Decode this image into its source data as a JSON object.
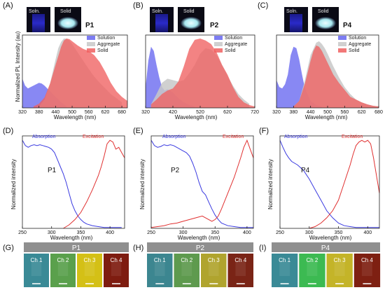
{
  "colors": {
    "solution": "#6666f0",
    "aggregate": "#c8c8c8",
    "solid": "#f06060",
    "absorption": "#3a3ae0",
    "excitation": "#e03030"
  },
  "insets": {
    "soln": "Soln.",
    "solid": "Solid"
  },
  "chart_data": [
    {
      "panel": "(A)",
      "sample": "P1",
      "type": "area",
      "xlabel": "Wavelength (nm)",
      "ylabel": "Normalized PL Intensity (au)",
      "xlim": [
        320,
        700
      ],
      "ylim": [
        0,
        1.05
      ],
      "xticks": [
        "320",
        "380",
        "440",
        "500",
        "560",
        "620",
        "680"
      ],
      "legend": [
        "Solution",
        "Aggregate",
        "Solid"
      ],
      "series": [
        {
          "name": "Solution",
          "color": "#6666f0",
          "x": [
            320,
            330,
            340,
            350,
            360,
            370,
            380,
            390,
            400,
            410,
            420,
            430,
            440,
            450,
            460,
            470,
            480
          ],
          "y": [
            0.42,
            0.32,
            0.28,
            0.3,
            0.32,
            0.34,
            0.36,
            0.35,
            0.32,
            0.28,
            0.24,
            0.2,
            0.16,
            0.12,
            0.08,
            0.05,
            0.02
          ]
        },
        {
          "name": "Aggregate",
          "color": "#c8c8c8",
          "x": [
            380,
            400,
            420,
            440,
            450,
            460,
            470,
            480,
            490,
            500,
            520,
            540,
            560,
            580,
            600,
            620,
            640,
            660,
            680
          ],
          "y": [
            0.02,
            0.12,
            0.35,
            0.7,
            0.86,
            0.95,
            1.0,
            1.0,
            0.97,
            0.92,
            0.8,
            0.68,
            0.56,
            0.45,
            0.36,
            0.28,
            0.2,
            0.14,
            0.08
          ]
        },
        {
          "name": "Solid",
          "color": "#f06060",
          "x": [
            360,
            380,
            400,
            420,
            440,
            460,
            470,
            480,
            490,
            500,
            520,
            540,
            560,
            580,
            600,
            620,
            640,
            660,
            680,
            700
          ],
          "y": [
            0.02,
            0.06,
            0.15,
            0.35,
            0.62,
            0.88,
            0.97,
            1.0,
            0.99,
            0.96,
            0.9,
            0.85,
            0.82,
            0.76,
            0.66,
            0.52,
            0.36,
            0.24,
            0.16,
            0.1
          ]
        }
      ]
    },
    {
      "panel": "(B)",
      "sample": "P2",
      "type": "area",
      "xlabel": "Wavelength (nm)",
      "ylabel": "",
      "xlim": [
        320,
        720
      ],
      "ylim": [
        0,
        1.05
      ],
      "xticks": [
        "320",
        "420",
        "520",
        "620",
        "720"
      ],
      "legend": [
        "Solution",
        "Aggregate",
        "Solid"
      ],
      "series": [
        {
          "name": "Solution",
          "color": "#6666f0",
          "x": [
            320,
            330,
            340,
            350,
            360,
            370,
            380,
            390,
            400,
            420,
            440,
            460,
            480,
            500
          ],
          "y": [
            0.3,
            0.68,
            0.88,
            0.82,
            0.62,
            0.44,
            0.3,
            0.25,
            0.27,
            0.22,
            0.14,
            0.08,
            0.04,
            0.02
          ]
        },
        {
          "name": "Aggregate",
          "color": "#c8c8c8",
          "x": [
            340,
            360,
            380,
            400,
            420,
            440,
            460,
            480,
            500,
            520,
            540,
            560,
            580,
            600,
            620,
            640,
            660,
            680,
            700
          ],
          "y": [
            0.05,
            0.2,
            0.36,
            0.42,
            0.4,
            0.38,
            0.4,
            0.5,
            0.62,
            0.78,
            0.86,
            0.84,
            0.76,
            0.62,
            0.46,
            0.32,
            0.2,
            0.12,
            0.06
          ]
        },
        {
          "name": "Solid",
          "color": "#f06060",
          "x": [
            340,
            360,
            380,
            400,
            420,
            440,
            460,
            480,
            500,
            520,
            540,
            560,
            580,
            600,
            620,
            640,
            660,
            680,
            700,
            720
          ],
          "y": [
            0.05,
            0.12,
            0.2,
            0.25,
            0.28,
            0.38,
            0.6,
            0.85,
            0.98,
            1.0,
            0.97,
            0.92,
            0.8,
            0.62,
            0.48,
            0.3,
            0.16,
            0.08,
            0.04,
            0.02
          ]
        }
      ]
    },
    {
      "panel": "(C)",
      "sample": "P4",
      "type": "area",
      "xlabel": "Wavelength (nm)",
      "ylabel": "",
      "xlim": [
        320,
        680
      ],
      "ylim": [
        0,
        1.05
      ],
      "xticks": [
        "320",
        "380",
        "440",
        "500",
        "560",
        "620",
        "680"
      ],
      "legend": [
        "Solution",
        "Aggregate",
        "Solid"
      ],
      "series": [
        {
          "name": "Solution",
          "color": "#6666f0",
          "x": [
            320,
            330,
            340,
            350,
            360,
            370,
            380,
            390,
            400,
            410,
            420,
            440,
            460,
            480
          ],
          "y": [
            0.4,
            0.3,
            0.28,
            0.34,
            0.48,
            0.76,
            0.88,
            0.86,
            0.7,
            0.48,
            0.28,
            0.1,
            0.04,
            0.02
          ]
        },
        {
          "name": "Aggregate",
          "color": "#c8c8c8",
          "x": [
            380,
            400,
            420,
            440,
            460,
            470,
            480,
            490,
            500,
            520,
            540,
            560,
            580,
            600,
            620,
            640,
            660,
            680
          ],
          "y": [
            0.02,
            0.1,
            0.4,
            0.76,
            0.94,
            0.96,
            0.92,
            0.86,
            0.78,
            0.6,
            0.44,
            0.3,
            0.2,
            0.12,
            0.08,
            0.05,
            0.03,
            0.02
          ]
        },
        {
          "name": "Solid",
          "color": "#f06060",
          "x": [
            380,
            400,
            420,
            440,
            450,
            460,
            470,
            480,
            500,
            520,
            540,
            560,
            580,
            600,
            620,
            640,
            660,
            680
          ],
          "y": [
            0.02,
            0.1,
            0.35,
            0.68,
            0.82,
            0.9,
            0.88,
            0.82,
            0.65,
            0.48,
            0.36,
            0.26,
            0.16,
            0.12,
            0.08,
            0.05,
            0.03,
            0.02
          ]
        }
      ]
    },
    {
      "panel": "(D)",
      "sample": "P1",
      "type": "line",
      "xlabel": "Wavelength (nm)",
      "ylabel": "Normalized intensity",
      "xlim": [
        250,
        425
      ],
      "ylim": [
        0,
        1.05
      ],
      "xticks": [
        "250",
        "300",
        "350",
        "400"
      ],
      "series": [
        {
          "name": "Absorption",
          "color": "#3a3ae0",
          "x": [
            250,
            255,
            260,
            265,
            270,
            275,
            280,
            285,
            290,
            295,
            300,
            305,
            310,
            315,
            320,
            325,
            330,
            335,
            340,
            345,
            350,
            355,
            360,
            370,
            380,
            390,
            400,
            410,
            420
          ],
          "y": [
            1.0,
            0.94,
            0.92,
            0.94,
            0.95,
            0.94,
            0.95,
            0.94,
            0.93,
            0.92,
            0.9,
            0.86,
            0.78,
            0.7,
            0.62,
            0.52,
            0.4,
            0.28,
            0.2,
            0.14,
            0.1,
            0.07,
            0.05,
            0.03,
            0.02,
            0.01,
            0.01,
            0.01,
            0.01
          ]
        },
        {
          "name": "Excitation",
          "color": "#e03030",
          "x": [
            320,
            330,
            340,
            350,
            360,
            370,
            380,
            385,
            390,
            395,
            400,
            405,
            410,
            415,
            420,
            425
          ],
          "y": [
            0.0,
            0.04,
            0.1,
            0.18,
            0.3,
            0.44,
            0.6,
            0.7,
            0.82,
            0.96,
            1.0,
            0.98,
            0.9,
            0.92,
            0.86,
            0.8
          ]
        }
      ]
    },
    {
      "panel": "(E)",
      "sample": "P2",
      "type": "line",
      "xlabel": "Wavelength (nm)",
      "ylabel": "Normalized intensity",
      "xlim": [
        250,
        410
      ],
      "ylim": [
        0,
        1.05
      ],
      "xticks": [
        "250",
        "300",
        "350",
        "400"
      ],
      "series": [
        {
          "name": "Absorption",
          "color": "#3a3ae0",
          "x": [
            250,
            255,
            260,
            265,
            270,
            275,
            280,
            285,
            290,
            295,
            300,
            305,
            310,
            315,
            320,
            325,
            330,
            335,
            340,
            345,
            350,
            355,
            360,
            370,
            380,
            390,
            400,
            410
          ],
          "y": [
            1.0,
            0.94,
            0.92,
            0.93,
            0.95,
            0.94,
            0.95,
            0.94,
            0.92,
            0.9,
            0.88,
            0.86,
            0.82,
            0.74,
            0.64,
            0.52,
            0.42,
            0.38,
            0.3,
            0.22,
            0.15,
            0.1,
            0.06,
            0.03,
            0.02,
            0.01,
            0.01,
            0.01
          ]
        },
        {
          "name": "Excitation",
          "color": "#e03030",
          "x": [
            250,
            260,
            270,
            280,
            290,
            300,
            310,
            320,
            330,
            340,
            345,
            350,
            355,
            360,
            370,
            380,
            390,
            395,
            400,
            405,
            410
          ],
          "y": [
            0.01,
            0.02,
            0.03,
            0.05,
            0.06,
            0.08,
            0.1,
            0.12,
            0.14,
            0.1,
            0.08,
            0.1,
            0.14,
            0.22,
            0.4,
            0.58,
            0.8,
            0.92,
            1.0,
            0.9,
            0.8
          ]
        }
      ]
    },
    {
      "panel": "(F)",
      "sample": "P4",
      "type": "line",
      "xlabel": "Wavelength (nm)",
      "ylabel": "Normalized intensity",
      "xlim": [
        250,
        420
      ],
      "ylim": [
        0,
        1.05
      ],
      "xticks": [
        "250",
        "300",
        "350",
        "400"
      ],
      "series": [
        {
          "name": "Absorption",
          "color": "#3a3ae0",
          "x": [
            250,
            255,
            260,
            265,
            270,
            280,
            290,
            300,
            310,
            320,
            330,
            340,
            350,
            360,
            370,
            380,
            390,
            400,
            410,
            420
          ],
          "y": [
            1.0,
            0.92,
            0.85,
            0.8,
            0.76,
            0.72,
            0.66,
            0.56,
            0.44,
            0.32,
            0.2,
            0.12,
            0.06,
            0.03,
            0.02,
            0.01,
            0.01,
            0.01,
            0.01,
            0.01
          ]
        },
        {
          "name": "Excitation",
          "color": "#e03030",
          "x": [
            300,
            310,
            320,
            330,
            340,
            350,
            360,
            370,
            375,
            380,
            385,
            390,
            395,
            400,
            405,
            410,
            415,
            420
          ],
          "y": [
            0.0,
            0.02,
            0.06,
            0.12,
            0.2,
            0.32,
            0.52,
            0.72,
            0.84,
            0.94,
            0.98,
            1.0,
            0.98,
            1.0,
            0.96,
            0.8,
            0.6,
            0.4
          ]
        }
      ]
    }
  ],
  "microscopy": [
    {
      "panel": "(G)",
      "title": "P1",
      "channels": [
        {
          "label": "Ch 1",
          "color": "#3a8a96"
        },
        {
          "label": "Ch 2",
          "color": "#5aa04c"
        },
        {
          "label": "Ch 3",
          "color": "#d4c016"
        },
        {
          "label": "Ch 4",
          "color": "#7e1c10"
        }
      ]
    },
    {
      "panel": "(H)",
      "title": "P2",
      "channels": [
        {
          "label": "Ch 1",
          "color": "#3c8690"
        },
        {
          "label": "Ch 2",
          "color": "#5e9a4e"
        },
        {
          "label": "Ch 3",
          "color": "#b0a42e"
        },
        {
          "label": "Ch 4",
          "color": "#7a2416"
        }
      ]
    },
    {
      "panel": "(I)",
      "title": "P4",
      "channels": [
        {
          "label": "Ch 1",
          "color": "#3a8a96"
        },
        {
          "label": "Ch 2",
          "color": "#3cba52"
        },
        {
          "label": "Ch 3",
          "color": "#c4b428"
        },
        {
          "label": "Ch 4",
          "color": "#7e2012"
        }
      ]
    }
  ]
}
